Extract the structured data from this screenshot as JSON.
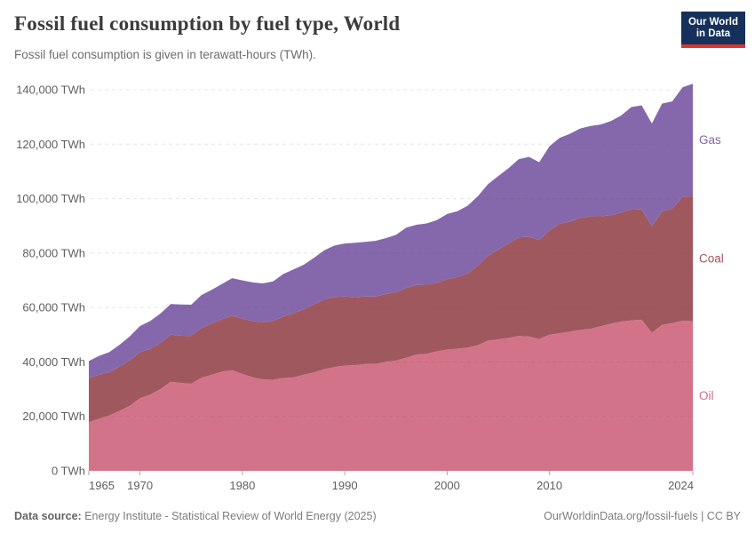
{
  "header": {
    "title": "Fossil fuel consumption by fuel type, World",
    "subtitle": "Fossil fuel consumption is given in terawatt-hours (TWh).",
    "logo": {
      "line1": "Our World",
      "line2": "in Data"
    }
  },
  "footer": {
    "source_label": "Data source:",
    "source": "Energy Institute - Statistical Review of World Energy (2025)",
    "link": "OurWorldinData.org/fossil-fuels",
    "separator": "|",
    "license": "CC BY"
  },
  "colors": {
    "logo_navy": "#15315b",
    "logo_red": "#dd352e",
    "axis_text": "#5f5f5f",
    "tick_mark": "#a6a6a6",
    "gridline": "#555555"
  },
  "chart_data": {
    "type": "area",
    "stacked": true,
    "title": "Fossil fuel consumption by fuel type, World",
    "subtitle": "Fossil fuel consumption is given in terawatt-hours (TWh).",
    "unit": "TWh",
    "grid": true,
    "legend_position": "right-edge-labels",
    "xlim": [
      1965,
      2024
    ],
    "ylim": [
      0,
      140000
    ],
    "y_ticks": [
      0,
      20000,
      40000,
      60000,
      80000,
      100000,
      120000,
      140000
    ],
    "y_tick_suffix": " TWh",
    "x_ticks": [
      1965,
      1970,
      1980,
      1990,
      2000,
      2010,
      2024
    ],
    "x": [
      1965,
      1966,
      1967,
      1968,
      1969,
      1970,
      1971,
      1972,
      1973,
      1974,
      1975,
      1976,
      1977,
      1978,
      1979,
      1980,
      1981,
      1982,
      1983,
      1984,
      1985,
      1986,
      1987,
      1988,
      1989,
      1990,
      1991,
      1992,
      1993,
      1994,
      1995,
      1996,
      1997,
      1998,
      1999,
      2000,
      2001,
      2002,
      2003,
      2004,
      2005,
      2006,
      2007,
      2008,
      2009,
      2010,
      2011,
      2012,
      2013,
      2014,
      2015,
      2016,
      2017,
      2018,
      2019,
      2020,
      2021,
      2022,
      2023,
      2024
    ],
    "series": [
      {
        "name": "Oil",
        "color": "#d3738a",
        "label_color": "#d06c85",
        "values": [
          17890,
          19127,
          20372,
          22034,
          23903,
          26664,
          28010,
          30016,
          32741,
          32281,
          31975,
          34153,
          35262,
          36430,
          36935,
          35577,
          34384,
          33566,
          33450,
          34114,
          34302,
          35349,
          36147,
          37375,
          38108,
          38663,
          38817,
          39280,
          39218,
          40012,
          40495,
          41500,
          42706,
          43020,
          43880,
          44537,
          44857,
          45299,
          46134,
          47856,
          48306,
          48825,
          49567,
          49296,
          48455,
          50041,
          50541,
          51090,
          51724,
          52169,
          53119,
          54033,
          54825,
          55294,
          55502,
          50702,
          53620,
          54298,
          55130,
          55000
        ]
      },
      {
        "name": "Coal",
        "color": "#a0585f",
        "label_color": "#a2525e",
        "values": [
          16151,
          16248,
          15860,
          16239,
          16647,
          16926,
          16808,
          16989,
          17249,
          17334,
          17588,
          18294,
          18912,
          19250,
          20095,
          20364,
          20606,
          21029,
          21670,
          22576,
          23607,
          24040,
          24935,
          25605,
          25802,
          25376,
          24997,
          24795,
          24857,
          24924,
          25091,
          25641,
          25560,
          25350,
          25187,
          25906,
          26324,
          27174,
          29208,
          31148,
          33017,
          34621,
          36212,
          36669,
          36311,
          38307,
          40245,
          40480,
          41242,
          41365,
          40372,
          39810,
          40055,
          40833,
          40470,
          39288,
          41697,
          42018,
          45565,
          45846
        ]
      },
      {
        "name": "Gas",
        "color": "#8568ac",
        "label_color": "#8465ab",
        "values": [
          6304,
          6868,
          7377,
          8050,
          8850,
          9604,
          10220,
          10778,
          11291,
          11491,
          11452,
          12122,
          12325,
          12936,
          13767,
          14022,
          14212,
          14279,
          14468,
          15638,
          16076,
          16318,
          17209,
          18031,
          18847,
          19484,
          19943,
          20050,
          20428,
          20519,
          21077,
          22163,
          22138,
          22505,
          23070,
          23891,
          24171,
          24911,
          25541,
          26322,
          26989,
          27707,
          28725,
          29378,
          28598,
          30907,
          31575,
          32255,
          32791,
          33125,
          33738,
          34657,
          35672,
          37523,
          38274,
          37625,
          39585,
          39413,
          40210,
          41334
        ]
      }
    ]
  }
}
